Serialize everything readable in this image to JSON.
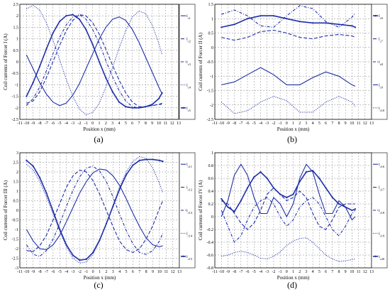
{
  "chart_data": [
    {
      "type": "line",
      "caption": "(a)",
      "xlabel": "Position x (mm)",
      "ylabel": "Coil currents of Forcer I (A)",
      "xlim": [
        -11,
        13
      ],
      "ylim": [
        -2.5,
        2.5
      ],
      "xticks": [
        -11,
        -10,
        -9,
        -8,
        -7,
        -6,
        -5,
        -4,
        -3,
        -2,
        -1,
        0,
        1,
        2,
        3,
        4,
        5,
        6,
        7,
        8,
        9,
        10,
        11,
        12,
        13
      ],
      "yticks": [
        -2.5,
        -2,
        -1.5,
        -1,
        -0.5,
        0,
        0.5,
        1,
        1.5,
        2,
        2.5
      ],
      "ytick_labels": [
        "-2.5",
        "-2",
        "-1.5",
        "-1",
        "-0.5",
        "0",
        "0.5",
        "1",
        "1.5",
        "2",
        "2.5"
      ],
      "series": [
        {
          "name": "i_c1",
          "style": "solid",
          "x": [
            -10,
            -9,
            -8,
            -7,
            -6,
            -5,
            -4,
            -3,
            -2,
            -1,
            0,
            1,
            2,
            3,
            4,
            5,
            6,
            7,
            8,
            9,
            10,
            10.5
          ],
          "y": [
            0.3,
            -0.3,
            -0.9,
            -1.4,
            -1.75,
            -1.9,
            -1.8,
            -1.45,
            -0.95,
            -0.3,
            0.35,
            1.0,
            1.5,
            1.85,
            1.95,
            1.8,
            1.4,
            0.85,
            0.2,
            -0.45,
            -1.1,
            -1.4
          ]
        },
        {
          "name": "i_c2",
          "style": "dashed",
          "x": [
            -10,
            -9,
            -8,
            -7,
            -6,
            -5,
            -4,
            -3,
            -2,
            -1,
            0,
            1,
            2,
            3,
            4,
            5,
            6,
            7,
            8,
            9,
            10,
            10.5
          ],
          "y": [
            -1.8,
            -1.7,
            -1.3,
            -0.7,
            0.0,
            0.7,
            1.35,
            1.8,
            2.05,
            2.0,
            1.7,
            1.2,
            0.55,
            -0.15,
            -0.8,
            -1.35,
            -1.75,
            -1.95,
            -1.95,
            -1.9,
            -1.85,
            -1.8
          ]
        },
        {
          "name": "i_c3",
          "style": "dashdot",
          "x": [
            -10,
            -9,
            -8,
            -7,
            -6,
            -5,
            -4,
            -3,
            -2,
            -1,
            0,
            1,
            2,
            3,
            4,
            5,
            6,
            7,
            8,
            9,
            10,
            10.5
          ],
          "y": [
            -1.9,
            -1.6,
            -1.1,
            -0.4,
            0.35,
            1.05,
            1.6,
            1.95,
            2.05,
            1.85,
            1.4,
            0.8,
            0.05,
            -0.65,
            -1.25,
            -1.7,
            -1.95,
            -2.0,
            -1.95,
            -1.9,
            -1.85,
            -1.85
          ]
        },
        {
          "name": "i_c4",
          "style": "dotted",
          "x": [
            -10,
            -9,
            -8,
            -7,
            -6,
            -5,
            -4,
            -3,
            -2,
            -1,
            0,
            1,
            2,
            3,
            4,
            5,
            6,
            7,
            8,
            9,
            10,
            10.5
          ],
          "y": [
            2.3,
            2.45,
            2.25,
            1.7,
            0.95,
            0.1,
            -0.75,
            -1.5,
            -2.05,
            -2.3,
            -2.2,
            -1.8,
            -1.1,
            -0.25,
            0.6,
            1.35,
            1.95,
            2.2,
            2.1,
            1.6,
            0.8,
            0.3
          ]
        },
        {
          "name": "i_c5",
          "style": "solid-marker",
          "x": [
            -10,
            -9,
            -8,
            -7,
            -6,
            -5,
            -4,
            -3,
            -2,
            -1,
            0,
            1,
            2,
            3,
            4,
            5,
            6,
            7,
            8,
            9,
            10,
            10.5
          ],
          "y": [
            -1.5,
            -0.9,
            -0.2,
            0.55,
            1.25,
            1.75,
            2.0,
            2.05,
            1.85,
            1.4,
            0.75,
            0.0,
            -0.7,
            -1.3,
            -1.75,
            -1.95,
            -2.0,
            -2.0,
            -1.95,
            -1.85,
            -1.6,
            -1.35
          ]
        }
      ]
    },
    {
      "type": "line",
      "caption": "(b)",
      "xlabel": "Position x (mm)",
      "ylabel": "Coil currents of Forcer II (A)",
      "xlim": [
        -11,
        13
      ],
      "ylim": [
        -2.5,
        1.5
      ],
      "xticks": [
        -11,
        -10,
        -9,
        -8,
        -7,
        -6,
        -5,
        -4,
        -3,
        -2,
        -1,
        0,
        1,
        2,
        3,
        4,
        5,
        6,
        7,
        8,
        9,
        10,
        11,
        12,
        13
      ],
      "yticks": [
        -2.5,
        -2,
        -1.5,
        -1,
        -0.5,
        0,
        0.5,
        1,
        1.5
      ],
      "ytick_labels": [
        "-2.5",
        "-2",
        "-1.5",
        "-1",
        "-0.5",
        "0",
        "0.5",
        "1",
        "1.5"
      ],
      "series": [
        {
          "name": "i_c6",
          "style": "solid-marker",
          "x": [
            -10,
            -8,
            -6,
            -4,
            -2,
            0,
            2,
            4,
            6,
            8,
            10,
            10.5
          ],
          "y": [
            0.7,
            0.8,
            1.0,
            1.1,
            1.1,
            1.0,
            0.9,
            0.85,
            0.85,
            0.8,
            0.75,
            0.7
          ]
        },
        {
          "name": "i_c7",
          "style": "dashed",
          "x": [
            -10,
            -8,
            -6,
            -4,
            -2,
            0,
            2,
            4,
            6,
            8,
            10,
            10.5
          ],
          "y": [
            0.35,
            0.25,
            0.35,
            0.55,
            0.6,
            0.5,
            0.35,
            0.3,
            0.4,
            0.45,
            0.4,
            0.35
          ]
        },
        {
          "name": "i_c8",
          "style": "dashdot",
          "x": [
            -10,
            -8,
            -6,
            -4,
            -2,
            0,
            2,
            4,
            6,
            8,
            10,
            10.5
          ],
          "y": [
            1.15,
            1.3,
            1.1,
            0.75,
            0.7,
            1.1,
            1.45,
            1.35,
            0.9,
            0.7,
            1.05,
            1.2
          ]
        },
        {
          "name": "i_c9",
          "style": "solid",
          "x": [
            -10,
            -8,
            -6,
            -4,
            -2,
            0,
            2,
            4,
            6,
            8,
            10,
            10.5
          ],
          "y": [
            -1.3,
            -1.2,
            -0.95,
            -0.7,
            -0.95,
            -1.3,
            -1.3,
            -1.05,
            -0.85,
            -1.0,
            -1.3,
            -1.35
          ]
        },
        {
          "name": "i_c10",
          "style": "dotted",
          "x": [
            -10,
            -8,
            -6,
            -4,
            -2,
            0,
            2,
            4,
            6,
            8,
            10,
            10.5
          ],
          "y": [
            -1.9,
            -2.3,
            -2.2,
            -1.9,
            -1.7,
            -1.85,
            -2.25,
            -2.25,
            -1.9,
            -1.7,
            -1.9,
            -2.05
          ]
        }
      ]
    },
    {
      "type": "line",
      "caption": "(c)",
      "xlabel": "Position x (mm)",
      "ylabel": "Coil currents of Forcer III (A)",
      "xlim": [
        -11,
        13
      ],
      "ylim": [
        -3,
        3
      ],
      "xticks": [
        -11,
        -10,
        -9,
        -8,
        -7,
        -6,
        -5,
        -4,
        -3,
        -2,
        -1,
        0,
        1,
        2,
        3,
        4,
        5,
        6,
        7,
        8,
        9,
        10,
        11,
        12,
        13
      ],
      "yticks": [
        -3,
        -2.5,
        -2,
        -1.5,
        -1,
        -0.5,
        0,
        0.5,
        1,
        1.5,
        2,
        2.5,
        3
      ],
      "ytick_labels": [
        "-3",
        "-2.5",
        "-2",
        "-1.5",
        "-1",
        "-0.5",
        "0",
        "0.5",
        "1",
        "1.5",
        "2",
        "2.5",
        "3"
      ],
      "series": [
        {
          "name": "i_c11",
          "style": "solid",
          "x": [
            -10,
            -9,
            -8,
            -7,
            -6,
            -5,
            -4,
            -3,
            -2,
            -1,
            0,
            1,
            2,
            3,
            4,
            5,
            6,
            7,
            8,
            9,
            10,
            10.5
          ],
          "y": [
            -1.0,
            -1.6,
            -2.0,
            -2.05,
            -1.8,
            -1.3,
            -0.6,
            0.15,
            0.9,
            1.5,
            1.95,
            2.15,
            2.1,
            1.8,
            1.3,
            0.6,
            -0.15,
            -0.85,
            -1.45,
            -1.8,
            -1.9,
            -1.85
          ]
        },
        {
          "name": "i_c12",
          "style": "dashed",
          "x": [
            -10,
            -9,
            -8,
            -7,
            -6,
            -5,
            -4,
            -3,
            -2,
            -1,
            0,
            1,
            2,
            3,
            4,
            5,
            6,
            7,
            8,
            9,
            10,
            10.5
          ],
          "y": [
            -2.1,
            -2.15,
            -1.85,
            -1.3,
            -0.5,
            0.35,
            1.2,
            1.8,
            2.1,
            2.0,
            1.55,
            0.85,
            0.0,
            -0.85,
            -1.6,
            -2.05,
            -2.2,
            -2.0,
            -1.5,
            -0.8,
            0.1,
            0.5
          ]
        },
        {
          "name": "i_c13",
          "style": "dashdot",
          "x": [
            -10,
            -9,
            -8,
            -7,
            -6,
            -5,
            -4,
            -3,
            -2,
            -1,
            0,
            1,
            2,
            3,
            4,
            5,
            6,
            7,
            8,
            9,
            10,
            10.5
          ],
          "y": [
            -1.8,
            -2.3,
            -2.4,
            -2.1,
            -1.5,
            -0.7,
            0.2,
            1.05,
            1.75,
            2.2,
            2.3,
            2.05,
            1.5,
            0.7,
            -0.2,
            -1.05,
            -1.75,
            -2.2,
            -2.3,
            -2.1,
            -1.6,
            -1.2
          ]
        },
        {
          "name": "i_c14",
          "style": "dotted",
          "x": [
            -10,
            -9,
            -8,
            -7,
            -6,
            -5,
            -4,
            -3,
            -2,
            -1,
            0,
            1,
            2,
            3,
            4,
            5,
            6,
            7,
            8,
            9,
            10,
            10.5
          ],
          "y": [
            2.4,
            2.1,
            1.5,
            0.7,
            -0.2,
            -1.1,
            -1.9,
            -2.5,
            -2.75,
            -2.7,
            -2.3,
            -1.6,
            -0.7,
            0.25,
            1.2,
            2.0,
            2.55,
            2.8,
            2.7,
            2.2,
            1.4,
            0.9
          ]
        },
        {
          "name": "i_c15",
          "style": "solid-marker",
          "x": [
            -10,
            -9,
            -8,
            -7,
            -6,
            -5,
            -4,
            -3,
            -2,
            -1,
            0,
            1,
            2,
            3,
            4,
            5,
            6,
            7,
            8,
            9,
            10,
            10.5
          ],
          "y": [
            2.6,
            2.3,
            1.7,
            0.9,
            -0.05,
            -1.0,
            -1.8,
            -2.35,
            -2.6,
            -2.55,
            -2.2,
            -1.55,
            -0.7,
            0.2,
            1.1,
            1.85,
            2.35,
            2.6,
            2.65,
            2.65,
            2.6,
            2.55
          ]
        }
      ]
    },
    {
      "type": "line",
      "caption": "(d)",
      "xlabel": "Position x (mm)",
      "ylabel": "Coil currents of Forcer IV (A)",
      "xlim": [
        -11,
        13
      ],
      "ylim": [
        -0.8,
        1.0
      ],
      "xticks": [
        -11,
        -10,
        -9,
        -8,
        -7,
        -6,
        -5,
        -4,
        -3,
        -2,
        -1,
        0,
        1,
        2,
        3,
        4,
        5,
        6,
        7,
        8,
        9,
        10,
        11,
        12,
        13
      ],
      "yticks": [
        -0.8,
        -0.6,
        -0.4,
        -0.2,
        0,
        0.2,
        0.4,
        0.6,
        0.8,
        1
      ],
      "ytick_labels": [
        "-0.8",
        "-0.6",
        "-0.4",
        "-0.2",
        "0",
        "0.2",
        "0.4",
        "0.6",
        "0.8",
        "1"
      ],
      "series": [
        {
          "name": "i_c16",
          "style": "solid",
          "x": [
            -10,
            -9,
            -8,
            -7,
            -6,
            -5,
            -4,
            -3,
            -2,
            -1,
            0,
            1,
            2,
            3,
            4,
            5,
            6,
            7,
            8,
            9,
            10,
            10.5
          ],
          "y": [
            0.0,
            0.25,
            0.65,
            0.82,
            0.65,
            0.3,
            0.05,
            0.05,
            0.3,
            0.2,
            0.0,
            0.2,
            0.6,
            0.82,
            0.7,
            0.35,
            0.05,
            0.05,
            0.25,
            0.15,
            -0.05,
            0.0
          ]
        },
        {
          "name": "i_c17",
          "style": "dashed",
          "x": [
            -10,
            -9,
            -8,
            -7,
            -6,
            -5,
            -4,
            -3,
            -2,
            -1,
            0,
            1,
            2,
            3,
            4,
            5,
            6,
            7,
            8,
            9,
            10,
            10.5
          ],
          "y": [
            0.25,
            0.2,
            0.05,
            -0.1,
            -0.2,
            -0.1,
            0.1,
            0.35,
            0.45,
            0.35,
            0.25,
            0.3,
            0.4,
            0.3,
            0.05,
            -0.15,
            -0.2,
            -0.05,
            0.15,
            0.2,
            0.2,
            0.2
          ]
        },
        {
          "name": "i_c18",
          "style": "dashdot",
          "x": [
            -10,
            -9,
            -8,
            -7,
            -6,
            -5,
            -4,
            -3,
            -2,
            -1,
            0,
            1,
            2,
            3,
            4,
            5,
            6,
            7,
            8,
            9,
            10,
            10.5
          ],
          "y": [
            0.1,
            -0.15,
            -0.4,
            -0.3,
            -0.05,
            0.15,
            0.25,
            0.3,
            0.2,
            0.0,
            -0.15,
            -0.05,
            0.15,
            0.25,
            0.3,
            0.2,
            0.0,
            -0.2,
            -0.3,
            -0.15,
            0.05,
            0.1
          ]
        },
        {
          "name": "i_c19",
          "style": "dotted",
          "x": [
            -10,
            -9,
            -8,
            -7,
            -6,
            -5,
            -4,
            -3,
            -2,
            -1,
            0,
            1,
            2,
            3,
            4,
            5,
            6,
            7,
            8,
            9,
            10,
            10.5
          ],
          "y": [
            -0.62,
            -0.6,
            -0.56,
            -0.54,
            -0.56,
            -0.6,
            -0.65,
            -0.66,
            -0.62,
            -0.55,
            -0.45,
            -0.38,
            -0.34,
            -0.33,
            -0.4,
            -0.5,
            -0.6,
            -0.66,
            -0.7,
            -0.69,
            -0.67,
            -0.66
          ]
        },
        {
          "name": "i_c20",
          "style": "solid-marker",
          "x": [
            -10,
            -9,
            -8,
            -7,
            -6,
            -5,
            -4,
            -3,
            -2,
            -1,
            0,
            1,
            2,
            3,
            4,
            5,
            6,
            7,
            8,
            9,
            10,
            10.5
          ],
          "y": [
            0.28,
            0.15,
            0.08,
            0.25,
            0.45,
            0.62,
            0.7,
            0.6,
            0.45,
            0.35,
            0.3,
            0.35,
            0.55,
            0.7,
            0.72,
            0.6,
            0.45,
            0.3,
            0.2,
            0.15,
            0.1,
            0.12
          ]
        }
      ]
    }
  ]
}
